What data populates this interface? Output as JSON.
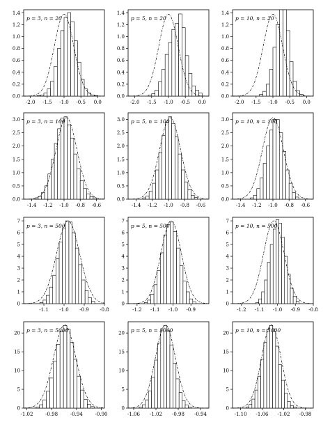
{
  "chart_data": [
    {
      "type": "histogram",
      "label": "p = 3, n = 20",
      "xlim": [
        -2.2,
        0.2
      ],
      "ylim": [
        0,
        1.45
      ],
      "xticks": [
        "-2.0",
        "-1.5",
        "-1.0",
        "-0.5",
        "0.0"
      ],
      "xtick_values": [
        -2.0,
        -1.5,
        -1.0,
        -0.5,
        0.0
      ],
      "yticks": [
        "0.0",
        "0.2",
        "0.4",
        "0.6",
        "0.8",
        "1.0",
        "1.2",
        "1.4"
      ],
      "ytick_values": [
        0,
        0.2,
        0.4,
        0.6,
        0.8,
        1.0,
        1.2,
        1.4
      ],
      "bin_start": -1.8,
      "bin_width": 0.1,
      "values": [
        0.01,
        0.02,
        0.05,
        0.12,
        0.25,
        0.5,
        0.8,
        1.1,
        1.32,
        1.4,
        1.25,
        0.93,
        0.57,
        0.28,
        0.12,
        0.05,
        0.02,
        0.01
      ],
      "curve": {
        "mean": -1.0,
        "sd": 0.29
      }
    },
    {
      "type": "histogram",
      "label": "p = 5, n = 20",
      "xlim": [
        -2.2,
        0.2
      ],
      "ylim": [
        0,
        1.45
      ],
      "xticks": [
        "-2.0",
        "-1.5",
        "-1.0",
        "-0.5",
        "0.0"
      ],
      "xtick_values": [
        -2.0,
        -1.5,
        -1.0,
        -0.5,
        0.0
      ],
      "yticks": [
        "0.0",
        "0.2",
        "0.4",
        "0.6",
        "0.8",
        "1.0",
        "1.2",
        "1.4"
      ],
      "ytick_values": [
        0,
        0.2,
        0.4,
        0.6,
        0.8,
        1.0,
        1.2,
        1.4
      ],
      "bin_start": -1.6,
      "bin_width": 0.1,
      "values": [
        0.02,
        0.04,
        0.1,
        0.24,
        0.45,
        0.7,
        0.9,
        1.12,
        1.22,
        1.38,
        1.15,
        0.68,
        0.38,
        0.17,
        0.1,
        0.05
      ],
      "curve": {
        "mean": -1.0,
        "sd": 0.29
      }
    },
    {
      "type": "histogram",
      "label": "p = 10, n = 20",
      "xlim": [
        -2.2,
        0.2
      ],
      "ylim": [
        0,
        1.45
      ],
      "xticks": [
        "-2.0",
        "-1.5",
        "-1.0",
        "-0.5",
        "0.0"
      ],
      "xtick_values": [
        -2.0,
        -1.5,
        -1.0,
        -0.5,
        0.0
      ],
      "yticks": [
        "0.0",
        "0.2",
        "0.4",
        "0.6",
        "0.8",
        "1.0",
        "1.2",
        "1.4"
      ],
      "ytick_values": [
        0,
        0.2,
        0.4,
        0.6,
        0.8,
        1.0,
        1.2,
        1.4
      ],
      "bin_start": -1.4,
      "bin_width": 0.1,
      "values": [
        0.03,
        0.08,
        0.2,
        0.45,
        0.82,
        1.2,
        1.45,
        1.45,
        1.1,
        0.58,
        0.25,
        0.09,
        0.03
      ],
      "curve": {
        "mean": -1.0,
        "sd": 0.29
      }
    },
    {
      "type": "histogram",
      "label": "p = 3, n = 100",
      "xlim": [
        -1.5,
        -0.5
      ],
      "ylim": [
        0,
        3.25
      ],
      "xticks": [
        "-1.4",
        "-1.2",
        "-1.0",
        "-0.8",
        "-0.6"
      ],
      "xtick_values": [
        -1.4,
        -1.2,
        -1.0,
        -0.8,
        -0.6
      ],
      "yticks": [
        "0.0",
        "0.5",
        "1.0",
        "1.5",
        "2.0",
        "2.5",
        "3.0"
      ],
      "ytick_values": [
        0,
        0.5,
        1.0,
        1.5,
        2.0,
        2.5,
        3.0
      ],
      "bin_start": -1.36,
      "bin_width": 0.04,
      "values": [
        0.05,
        0.1,
        0.25,
        0.5,
        0.95,
        1.5,
        2.1,
        2.65,
        3.05,
        3.1,
        2.8,
        2.3,
        1.7,
        1.15,
        0.7,
        0.4,
        0.2,
        0.1,
        0.05
      ],
      "curve": {
        "mean": -0.97,
        "sd": 0.13
      }
    },
    {
      "type": "histogram",
      "label": "p = 5, n = 100",
      "xlim": [
        -1.5,
        -0.5
      ],
      "ylim": [
        0,
        3.25
      ],
      "xticks": [
        "-1.4",
        "-1.2",
        "-1.0",
        "-0.8",
        "-0.6"
      ],
      "xtick_values": [
        -1.4,
        -1.2,
        -1.0,
        -0.8,
        -0.6
      ],
      "yticks": [
        "0.0",
        "0.5",
        "1.0",
        "1.5",
        "2.0",
        "2.5",
        "3.0"
      ],
      "ytick_values": [
        0,
        0.5,
        1.0,
        1.5,
        2.0,
        2.5,
        3.0
      ],
      "bin_start": -1.32,
      "bin_width": 0.04,
      "values": [
        0.05,
        0.12,
        0.3,
        0.6,
        1.1,
        1.75,
        2.4,
        2.9,
        3.1,
        2.85,
        2.35,
        1.7,
        1.1,
        0.65,
        0.35,
        0.15,
        0.06
      ],
      "curve": {
        "mean": -0.98,
        "sd": 0.13
      }
    },
    {
      "type": "histogram",
      "label": "p = 10, n = 100",
      "xlim": [
        -1.5,
        -0.5
      ],
      "ylim": [
        0,
        3.25
      ],
      "xticks": [
        "-1.4",
        "-1.2",
        "-1.0",
        "-0.8",
        "-0.6"
      ],
      "xtick_values": [
        -1.4,
        -1.2,
        -1.0,
        -0.8,
        -0.6
      ],
      "yticks": [
        "0.0",
        "0.5",
        "1.0",
        "1.5",
        "2.0",
        "2.5",
        "3.0"
      ],
      "ytick_values": [
        0,
        0.5,
        1.0,
        1.5,
        2.0,
        2.5,
        3.0
      ],
      "bin_start": -1.28,
      "bin_width": 0.04,
      "values": [
        0.05,
        0.15,
        0.4,
        0.8,
        1.35,
        2.0,
        2.6,
        3.0,
        3.0,
        2.5,
        1.8,
        1.1,
        0.6,
        0.25,
        0.08
      ],
      "curve": {
        "mean": -1.0,
        "sd": 0.13
      }
    },
    {
      "type": "histogram",
      "label": "p = 3, n = 500",
      "xlim": [
        -1.2,
        -0.8
      ],
      "ylim": [
        0,
        7.3
      ],
      "xticks": [
        "-1.1",
        "-1.0",
        "-0.9",
        "-0.8"
      ],
      "xtick_values": [
        -1.1,
        -1.0,
        -0.9,
        -0.8
      ],
      "yticks": [
        "0",
        "1",
        "2",
        "3",
        "4",
        "5",
        "6",
        "7"
      ],
      "ytick_values": [
        0,
        1,
        2,
        3,
        4,
        5,
        6,
        7
      ],
      "bin_start": -1.12,
      "bin_width": 0.016,
      "values": [
        0.1,
        0.3,
        0.7,
        1.4,
        2.4,
        3.8,
        5.2,
        6.4,
        7.0,
        6.9,
        6.0,
        4.7,
        3.3,
        2.0,
        1.1,
        0.5,
        0.2
      ],
      "curve": {
        "mean": -0.98,
        "sd": 0.057
      }
    },
    {
      "type": "histogram",
      "label": "p = 5, n = 500",
      "xlim": [
        -1.25,
        -0.8
      ],
      "ylim": [
        0,
        7.3
      ],
      "xticks": [
        "-1.2",
        "-1.1",
        "-1.0",
        "-0.9"
      ],
      "xtick_values": [
        -1.2,
        -1.1,
        -1.0,
        -0.9
      ],
      "yticks": [
        "0",
        "1",
        "2",
        "3",
        "4",
        "5",
        "6",
        "7"
      ],
      "ytick_values": [
        0,
        1,
        2,
        3,
        4,
        5,
        6,
        7
      ],
      "bin_start": -1.16,
      "bin_width": 0.018,
      "values": [
        0.1,
        0.3,
        0.8,
        1.6,
        2.8,
        4.3,
        5.8,
        6.7,
        6.9,
        6.1,
        4.7,
        3.2,
        1.9,
        1.0,
        0.4,
        0.15
      ],
      "curve": {
        "mean": -1.01,
        "sd": 0.057
      }
    },
    {
      "type": "histogram",
      "label": "p = 10, n = 500",
      "xlim": [
        -1.25,
        -0.8
      ],
      "ylim": [
        0,
        7.3
      ],
      "xticks": [
        "-1.2",
        "-1.1",
        "-1.0",
        "-0.9",
        "-0.8"
      ],
      "xtick_values": [
        -1.2,
        -1.1,
        -1.0,
        -0.9,
        -0.8
      ],
      "yticks": [
        "0",
        "1",
        "2",
        "3",
        "4",
        "5",
        "6",
        "7"
      ],
      "ytick_values": [
        0,
        1,
        2,
        3,
        4,
        5,
        6,
        7
      ],
      "bin_start": -1.12,
      "bin_width": 0.016,
      "values": [
        0.1,
        0.4,
        1.0,
        2.0,
        3.5,
        5.0,
        6.3,
        7.1,
        6.8,
        5.6,
        4.0,
        2.5,
        1.3,
        0.6,
        0.2
      ],
      "curve": {
        "mean": -1.02,
        "sd": 0.057
      }
    },
    {
      "type": "histogram",
      "label": "p = 3, n = 5000",
      "xlim": [
        -1.025,
        -0.895
      ],
      "ylim": [
        0,
        23
      ],
      "xticks": [
        "-1.02",
        "-0.98",
        "-0.94",
        "-0.90"
      ],
      "xtick_values": [
        -1.02,
        -0.98,
        -0.94,
        -0.9
      ],
      "yticks": [
        "0",
        "5",
        "10",
        "15",
        "20"
      ],
      "ytick_values": [
        0,
        5,
        10,
        15,
        20
      ],
      "bin_start": -1.005,
      "bin_width": 0.0055,
      "values": [
        0.3,
        0.9,
        2.2,
        4.5,
        8.0,
        12.5,
        17.0,
        20.5,
        22.0,
        21.0,
        17.5,
        13.0,
        8.5,
        4.8,
        2.3,
        1.0,
        0.4
      ],
      "curve": {
        "mean": -0.959,
        "sd": 0.018
      }
    },
    {
      "type": "histogram",
      "label": "p = 5, n = 5000",
      "xlim": [
        -1.07,
        -0.925
      ],
      "ylim": [
        0,
        23
      ],
      "xticks": [
        "-1.06",
        "-1.02",
        "-0.98",
        "-0.94"
      ],
      "xtick_values": [
        -1.06,
        -1.02,
        -0.98,
        -0.94
      ],
      "yticks": [
        "0",
        "5",
        "10",
        "15",
        "20"
      ],
      "ytick_values": [
        0,
        5,
        10,
        15,
        20
      ],
      "bin_start": -1.05,
      "bin_width": 0.0055,
      "values": [
        0.3,
        0.9,
        2.2,
        4.6,
        8.2,
        12.8,
        17.3,
        20.8,
        22.0,
        20.6,
        16.8,
        12.0,
        7.8,
        4.2,
        2.0,
        0.8,
        0.3
      ],
      "curve": {
        "mean": -1.003,
        "sd": 0.018
      }
    },
    {
      "type": "histogram",
      "label": "p = 10, n = 5000",
      "xlim": [
        -1.115,
        -0.965
      ],
      "ylim": [
        0,
        23
      ],
      "xticks": [
        "-1.10",
        "-1.06",
        "-1.02",
        "-0.98"
      ],
      "xtick_values": [
        -1.1,
        -1.06,
        -1.02,
        -0.98
      ],
      "yticks": [
        "0",
        "5",
        "10",
        "15",
        "20"
      ],
      "ytick_values": [
        0,
        5,
        10,
        15,
        20
      ],
      "bin_start": -1.09,
      "bin_width": 0.0055,
      "values": [
        0.3,
        1.0,
        2.4,
        4.8,
        8.5,
        13.0,
        17.5,
        21.0,
        22.0,
        20.4,
        16.5,
        11.6,
        7.4,
        4.0,
        1.8,
        0.7,
        0.3
      ],
      "curve": {
        "mean": -1.043,
        "sd": 0.018
      }
    }
  ]
}
